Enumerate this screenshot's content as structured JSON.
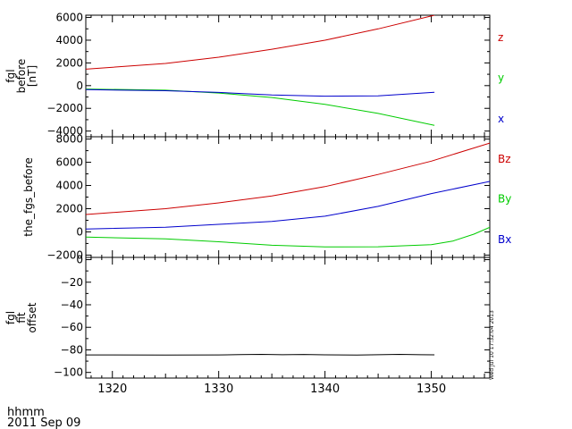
{
  "chart_data": [
    {
      "type": "line",
      "ylabel_lines": [
        "fgl",
        "before",
        "[nT]"
      ],
      "ylim": [
        -4500,
        6200
      ],
      "xlim": [
        1317.5,
        1355.5
      ],
      "yticks": [
        6000,
        4000,
        2000,
        0,
        -2000,
        -4000
      ],
      "ytick_labels": [
        "6000",
        "4000",
        "2000",
        "0",
        "−2000",
        "−4000"
      ],
      "series": [
        {
          "name": "z",
          "color": "#cc0000",
          "x": [
            1317.5,
            1325,
            1330,
            1335,
            1340,
            1345,
            1350.3
          ],
          "y": [
            1450,
            1950,
            2500,
            3200,
            4000,
            5000,
            6200
          ]
        },
        {
          "name": "y",
          "color": "#00cc00",
          "x": [
            1317.5,
            1325,
            1330,
            1335,
            1340,
            1345,
            1350.3
          ],
          "y": [
            -300,
            -400,
            -650,
            -1050,
            -1650,
            -2450,
            -3500
          ]
        },
        {
          "name": "x",
          "color": "#0000cc",
          "x": [
            1317.5,
            1325,
            1330,
            1335,
            1340,
            1345,
            1350.3
          ],
          "y": [
            -350,
            -450,
            -600,
            -820,
            -930,
            -900,
            -580
          ]
        }
      ]
    },
    {
      "type": "line",
      "ylabel_lines": [
        "the_fgs_before"
      ],
      "ylim": [
        -2200,
        8200
      ],
      "xlim": [
        1317.5,
        1355.5
      ],
      "yticks": [
        8000,
        6000,
        4000,
        2000,
        0,
        -2000
      ],
      "ytick_labels": [
        "8000",
        "6000",
        "4000",
        "2000",
        "0",
        "−2000"
      ],
      "series": [
        {
          "name": "Bz",
          "color": "#cc0000",
          "x": [
            1317.5,
            1325,
            1330,
            1335,
            1340,
            1345,
            1350,
            1355.5
          ],
          "y": [
            1500,
            2000,
            2500,
            3100,
            3900,
            4950,
            6100,
            7650
          ]
        },
        {
          "name": "By",
          "color": "#00cc00",
          "x": [
            1317.5,
            1325,
            1330,
            1335,
            1340,
            1345,
            1350,
            1352,
            1354,
            1355.5
          ],
          "y": [
            -450,
            -600,
            -850,
            -1150,
            -1300,
            -1280,
            -1100,
            -800,
            -200,
            400
          ]
        },
        {
          "name": "Bx",
          "color": "#0000cc",
          "x": [
            1317.5,
            1325,
            1330,
            1335,
            1340,
            1345,
            1350,
            1355.5
          ],
          "y": [
            250,
            400,
            650,
            900,
            1350,
            2200,
            3300,
            4350
          ]
        }
      ]
    },
    {
      "type": "line",
      "ylabel_lines": [
        "fgl",
        "fit",
        "offset"
      ],
      "ylim": [
        -105,
        2
      ],
      "xlim": [
        1317.5,
        1355.5
      ],
      "yticks": [
        0,
        -20,
        -40,
        -60,
        -80,
        -100
      ],
      "ytick_labels": [
        "0",
        "−20",
        "−40",
        "−60",
        "−80",
        "−100"
      ],
      "series": [
        {
          "name": "",
          "color": "#000000",
          "x": [
            1317.5,
            1325,
            1330,
            1332,
            1334,
            1336,
            1338,
            1340,
            1343,
            1345,
            1347,
            1349,
            1350.3
          ],
          "y": [
            -84.5,
            -84.6,
            -84.5,
            -84.2,
            -84.0,
            -84.3,
            -84.1,
            -84.4,
            -84.6,
            -84.3,
            -84.0,
            -84.3,
            -84.4
          ]
        }
      ]
    }
  ],
  "x_axis": {
    "tick_values": [
      1320,
      1330,
      1340,
      1350
    ],
    "tick_labels": [
      "1320",
      "1330",
      "1340",
      "1350"
    ],
    "label_line1": "hhmm",
    "label_line2": "2011 Sep 09"
  },
  "timestamp": "Wed Jul 10 17:32:04 2013"
}
